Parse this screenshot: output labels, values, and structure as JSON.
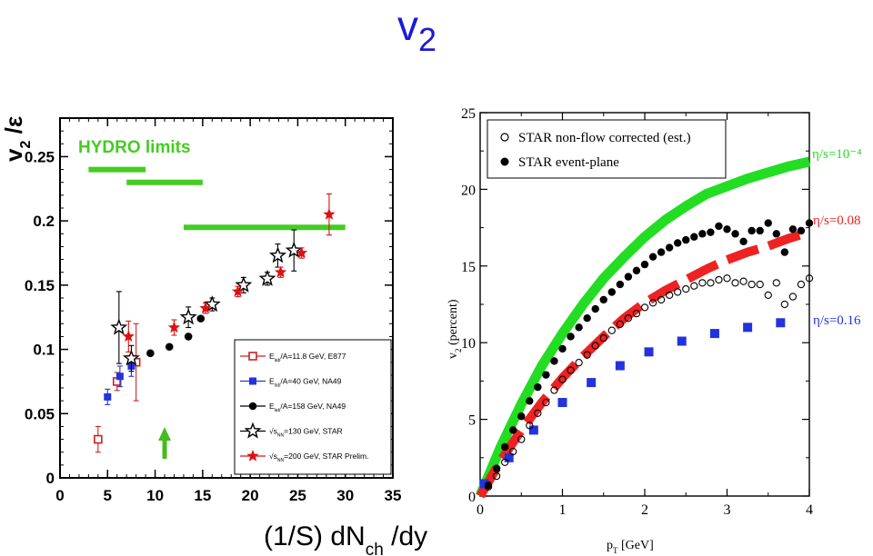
{
  "page": {
    "title_main": "v",
    "title_sub": "2"
  },
  "chart_data": [
    {
      "type": "scatter",
      "xlabel": "(1/S) dN",
      "xlabel_sub": "ch",
      "xlabel_tail": " /dy",
      "ylabel": "v",
      "ylabel_sub": "2",
      "ylabel_tail": " /ε",
      "xlim": [
        0,
        35
      ],
      "ylim": [
        0,
        0.28
      ],
      "xticks": [
        "0",
        "5",
        "10",
        "15",
        "20",
        "25",
        "30",
        "35"
      ],
      "yticks": [
        "0",
        "0.05",
        "0.1",
        "0.15",
        "0.2",
        "0.25"
      ],
      "annotation": "HYDRO  limits",
      "hydro_limits": [
        {
          "x_start": 3,
          "x_end": 9,
          "y": 0.24
        },
        {
          "x_start": 7,
          "x_end": 15,
          "y": 0.23
        },
        {
          "x_start": 13,
          "x_end": 30,
          "y": 0.195
        }
      ],
      "arrow_x": 11,
      "colors": {
        "e877": "#cc2222",
        "na49_40": "#2233dd",
        "na49_158": "#000000",
        "star130": "#000000",
        "star200": "#dd1111",
        "hydro": "#44cc22",
        "arrow": "#44bb22"
      },
      "series": [
        {
          "name": "E_lab/A=11.8 GeV, E877",
          "legend_pre": "E",
          "legend_sub": "lab",
          "legend_post": "/A=11.8 GeV, E877",
          "marker": "open-square",
          "points": [
            [
              4.0,
              0.03,
              0.01
            ],
            [
              6.0,
              0.075,
              0.007
            ],
            [
              8.0,
              0.09,
              0.03
            ]
          ]
        },
        {
          "name": "E_lab/A=40 GeV, NA49",
          "legend_pre": "E",
          "legend_sub": "lab",
          "legend_post": "/A=40 GeV, NA49",
          "marker": "filled-square",
          "points": [
            [
              5.0,
              0.063,
              0.006
            ],
            [
              6.3,
              0.079,
              0.008
            ],
            [
              7.5,
              0.087,
              0.008
            ]
          ]
        },
        {
          "name": "E_lab/A=158 GeV, NA49",
          "legend_pre": "E",
          "legend_sub": "lab",
          "legend_post": "/A=158 GeV, NA49",
          "marker": "filled-circle",
          "points": [
            [
              9.5,
              0.097,
              0
            ],
            [
              11.5,
              0.102,
              0
            ],
            [
              13.5,
              0.11,
              0
            ],
            [
              14.8,
              0.124,
              0
            ]
          ]
        },
        {
          "name": "√s_NN=130 GeV, STAR",
          "legend_pre": "√s",
          "legend_sub": "NN",
          "legend_post": "=130 GeV, STAR",
          "marker": "open-star",
          "points": [
            [
              6.2,
              0.117,
              0.028
            ],
            [
              7.5,
              0.093,
              0.01
            ],
            [
              13.5,
              0.125,
              0.008
            ],
            [
              16.0,
              0.135,
              0.005
            ],
            [
              19.3,
              0.15,
              0.006
            ],
            [
              21.8,
              0.155,
              0.005
            ],
            [
              22.9,
              0.173,
              0.009
            ],
            [
              24.6,
              0.177,
              0.016
            ]
          ]
        },
        {
          "name": "√s_NN=200 GeV, STAR Prelim.",
          "legend_pre": "√s",
          "legend_sub": "NN",
          "legend_post": "=200 GeV, STAR Prelim.",
          "marker": "filled-star",
          "points": [
            [
              7.2,
              0.11,
              0.012
            ],
            [
              12.0,
              0.117,
              0.006
            ],
            [
              15.3,
              0.132,
              0.004
            ],
            [
              18.7,
              0.145,
              0.004
            ],
            [
              23.2,
              0.16,
              0.004
            ],
            [
              25.4,
              0.175,
              0.004
            ],
            [
              28.3,
              0.205,
              0.016
            ]
          ]
        }
      ]
    },
    {
      "type": "line",
      "xlabel": "p",
      "xlabel_sub": "T",
      "xlabel_tail": " [GeV]",
      "ylabel": "v",
      "ylabel_sub": "2",
      "ylabel_tail": " (percent)",
      "xlim": [
        0,
        4
      ],
      "ylim": [
        0,
        25
      ],
      "xticks": [
        "0",
        "1",
        "2",
        "3",
        "4"
      ],
      "yticks": [
        "0",
        "5",
        "10",
        "15",
        "20",
        "25"
      ],
      "legend": [
        "STAR non-flow corrected (est.)",
        "STAR event-plane"
      ],
      "labels": {
        "eta_10m4": "η/s=10⁻⁴",
        "eta_008": "η/s=0.08",
        "eta_016": "η/s=0.16"
      },
      "colors": {
        "green": "#22dd22",
        "red": "#ee2222",
        "blue": "#2233dd",
        "black": "#000000"
      },
      "series": [
        {
          "name": "STAR non-flow corrected (est.)",
          "marker": "open-circle",
          "x": [
            0.1,
            0.2,
            0.3,
            0.4,
            0.5,
            0.6,
            0.7,
            0.8,
            0.9,
            1.0,
            1.1,
            1.2,
            1.3,
            1.4,
            1.5,
            1.6,
            1.7,
            1.8,
            1.9,
            2.0,
            2.1,
            2.2,
            2.3,
            2.4,
            2.5,
            2.6,
            2.7,
            2.8,
            2.9,
            3.0,
            3.1,
            3.2,
            3.3,
            3.4,
            3.5,
            3.6,
            3.7,
            3.8,
            3.9,
            4.0
          ],
          "y": [
            0.6,
            1.3,
            2.2,
            2.9,
            3.7,
            4.6,
            5.4,
            6.1,
            6.9,
            7.6,
            8.2,
            8.7,
            9.2,
            9.8,
            10.3,
            10.8,
            11.2,
            11.6,
            11.9,
            12.3,
            12.6,
            12.8,
            13.1,
            13.3,
            13.5,
            13.7,
            13.9,
            13.9,
            14.1,
            14.2,
            13.9,
            14.0,
            13.8,
            13.8,
            13.1,
            13.9,
            12.5,
            13.0,
            13.8,
            14.2
          ]
        },
        {
          "name": "STAR event-plane",
          "marker": "filled-circle",
          "x": [
            0.1,
            0.2,
            0.3,
            0.4,
            0.5,
            0.6,
            0.7,
            0.8,
            0.9,
            1.0,
            1.1,
            1.2,
            1.3,
            1.4,
            1.5,
            1.6,
            1.7,
            1.8,
            1.9,
            2.0,
            2.1,
            2.2,
            2.3,
            2.4,
            2.5,
            2.6,
            2.7,
            2.8,
            2.9,
            3.0,
            3.1,
            3.2,
            3.3,
            3.4,
            3.5,
            3.6,
            3.7,
            3.8,
            3.9,
            4.0
          ],
          "y": [
            0.7,
            1.8,
            3.2,
            4.3,
            5.2,
            6.2,
            7.1,
            7.9,
            8.8,
            9.6,
            10.4,
            11.0,
            11.6,
            12.2,
            12.8,
            13.3,
            13.8,
            14.3,
            14.7,
            15.1,
            15.6,
            15.9,
            16.2,
            16.5,
            16.7,
            16.9,
            17.1,
            17.2,
            17.6,
            17.4,
            17.1,
            16.6,
            17.3,
            17.3,
            17.8,
            17.1,
            15.9,
            17.4,
            17.3,
            17.8
          ]
        },
        {
          "name": "η/s=10⁻⁴",
          "style": "thick",
          "x": [
            0,
            0.25,
            0.5,
            0.75,
            1.0,
            1.25,
            1.5,
            1.75,
            2.0,
            2.25,
            2.5,
            2.75,
            3.0,
            3.25,
            3.5,
            3.75,
            4.0
          ],
          "y": [
            0,
            3.2,
            6.0,
            8.5,
            10.6,
            12.5,
            14.2,
            15.6,
            16.9,
            18.0,
            18.9,
            19.7,
            20.2,
            20.7,
            21.1,
            21.5,
            21.8
          ]
        },
        {
          "name": "η/s=0.08",
          "style": "dashed-thick",
          "x": [
            0,
            0.25,
            0.5,
            0.75,
            1.0,
            1.25,
            1.5,
            1.75,
            2.0,
            2.25,
            2.5,
            2.75,
            3.0,
            3.25,
            3.5,
            3.75,
            4.0
          ],
          "y": [
            0,
            2.3,
            4.3,
            6.1,
            7.7,
            9.1,
            10.4,
            11.6,
            12.6,
            13.4,
            14.1,
            14.8,
            15.4,
            15.9,
            16.3,
            16.8,
            17.2
          ]
        },
        {
          "name": "η/s=0.16",
          "style": "dotted-blocks",
          "x": [
            0.05,
            0.35,
            0.65,
            1.0,
            1.35,
            1.7,
            2.05,
            2.45,
            2.85,
            3.25,
            3.65
          ],
          "y": [
            0.8,
            2.5,
            4.3,
            6.1,
            7.4,
            8.5,
            9.4,
            10.1,
            10.6,
            11.0,
            11.3
          ]
        }
      ]
    }
  ]
}
